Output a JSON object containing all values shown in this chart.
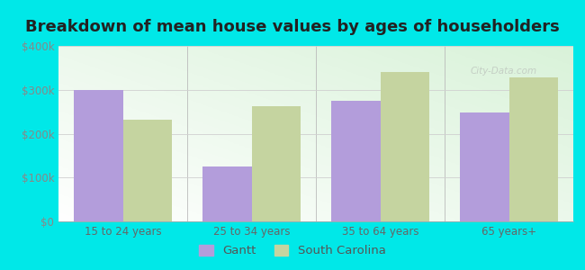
{
  "title": "Breakdown of mean house values by ages of householders",
  "categories": [
    "15 to 24 years",
    "25 to 34 years",
    "35 to 64 years",
    "65 years+"
  ],
  "gantt_values": [
    300000,
    125000,
    275000,
    248000
  ],
  "sc_values": [
    232000,
    263000,
    340000,
    328000
  ],
  "gantt_color": "#b39ddb",
  "sc_color": "#c5d4a0",
  "background_color": "#00e8e8",
  "ylim": [
    0,
    400000
  ],
  "yticks": [
    0,
    100000,
    200000,
    300000,
    400000
  ],
  "ytick_labels": [
    "$0",
    "$100k",
    "$200k",
    "$300k",
    "$400k"
  ],
  "legend_labels": [
    "Gantt",
    "South Carolina"
  ],
  "bar_width": 0.38,
  "title_fontsize": 13,
  "tick_fontsize": 8.5,
  "legend_fontsize": 9.5,
  "grid_color": "#d0d0d0",
  "watermark": "City-Data.com",
  "watermark_color": "#c0c8c0"
}
